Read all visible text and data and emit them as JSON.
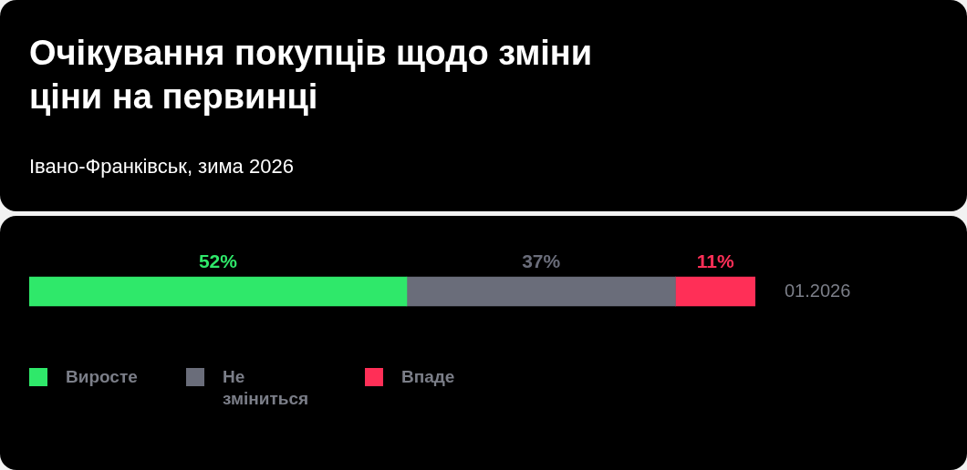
{
  "chart_data": {
    "type": "bar",
    "orientation": "horizontal",
    "stacked": true,
    "title": "Очікування покупців щодо зміни ціни на первинці",
    "subtitle": "Івано-Франківськ, зима 2026",
    "categories": [
      "01.2026"
    ],
    "tick_labels": "y",
    "legend": "bottom left",
    "series": [
      {
        "name": "Виросте",
        "color": "#2fe86a",
        "values": [
          52
        ],
        "value_labels": [
          "52%"
        ]
      },
      {
        "name": "Не зміниться",
        "color": "#6a6d7a",
        "values": [
          37
        ],
        "value_labels": [
          "37%"
        ]
      },
      {
        "name": "Впаде",
        "color": "#ff2f57",
        "values": [
          11
        ],
        "value_labels": [
          "11%"
        ]
      }
    ]
  }
}
